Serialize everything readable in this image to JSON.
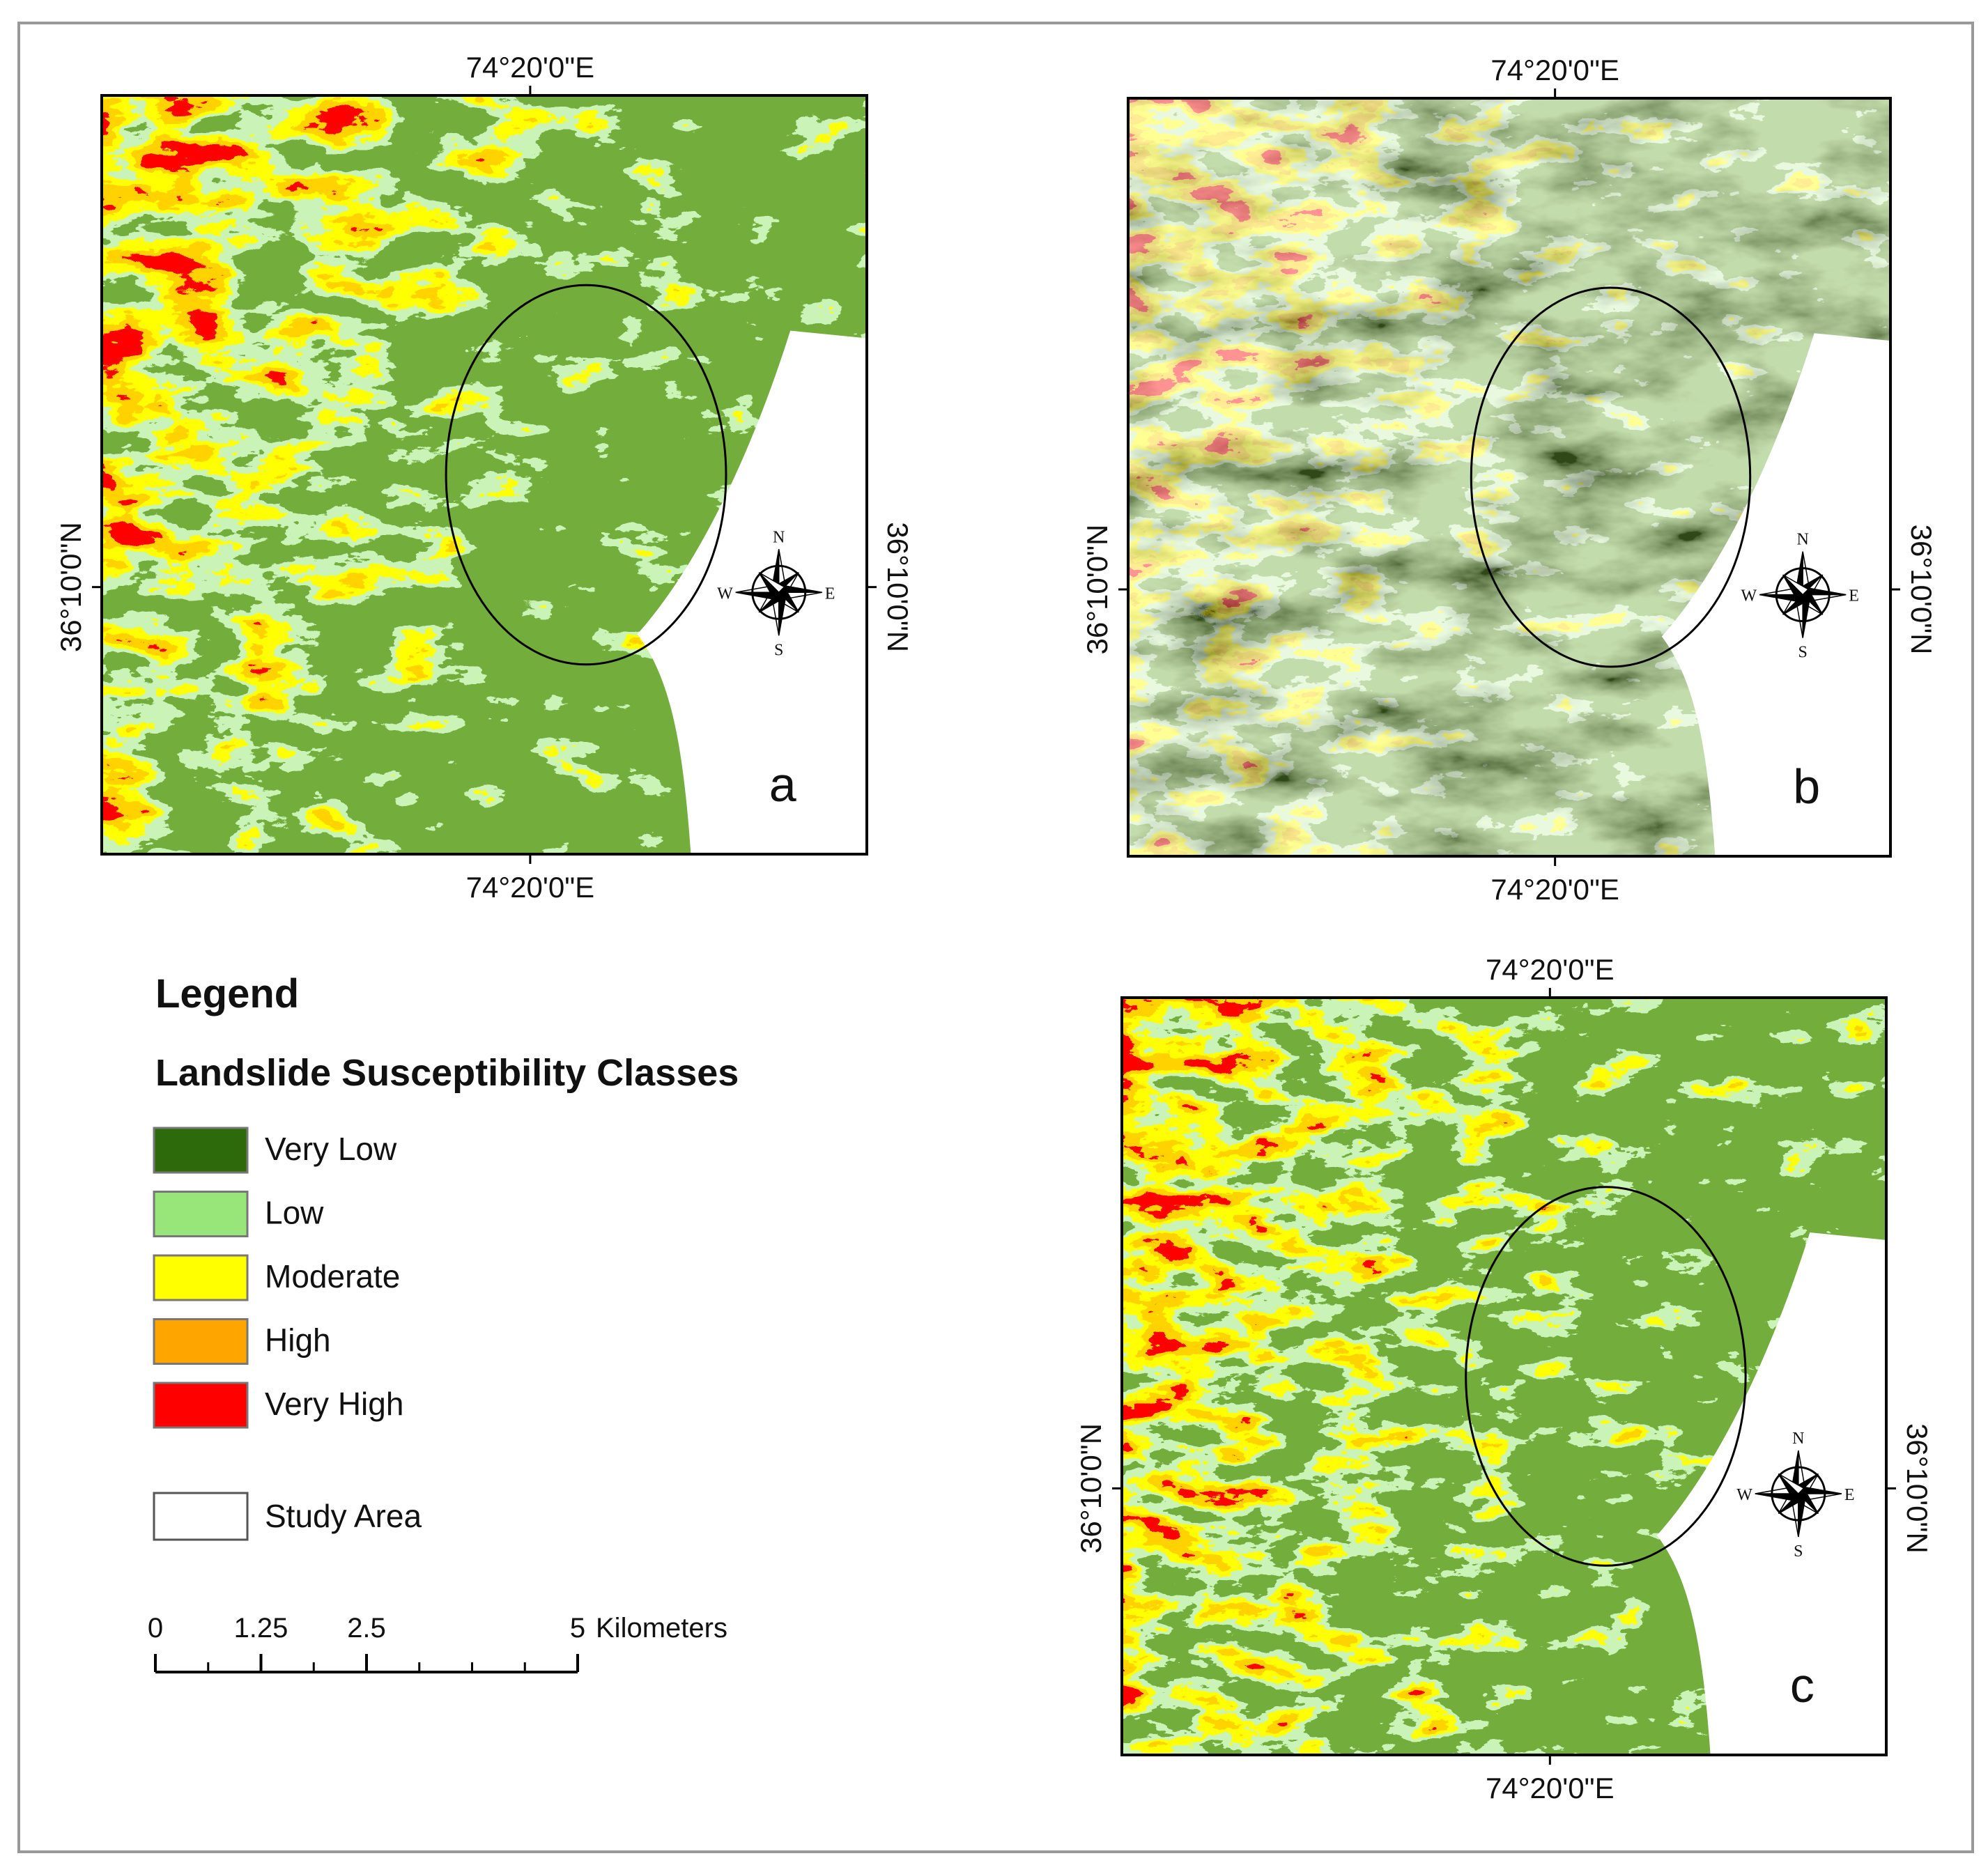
{
  "panels": [
    {
      "label": "a",
      "top_label": "74°20'0\"E",
      "bottom_label": "74°20'0\"E",
      "left_label": "36°10'0\"N",
      "right_label": "36°10'0\"N"
    },
    {
      "label": "b",
      "top_label": "74°20'0\"E",
      "bottom_label": "74°20'0\"E",
      "left_label": "36°10'0\"N",
      "right_label": "36°10'0\"N"
    },
    {
      "label": "c",
      "top_label": "74°20'0\"E",
      "bottom_label": "74°20'0\"E",
      "left_label": "36°10'0\"N",
      "right_label": "36°10'0\"N"
    }
  ],
  "compass": {
    "north": "N",
    "east": "E",
    "south": "S",
    "west": "W"
  },
  "legend": {
    "title": "Legend",
    "subtitle": "Landslide Susceptibility Classes",
    "classes": [
      {
        "label": "Very Low",
        "color": "#2c6a0c"
      },
      {
        "label": "Low",
        "color": "#98e57a"
      },
      {
        "label": "Moderate",
        "color": "#ffff00"
      },
      {
        "label": "High",
        "color": "#ffa500"
      },
      {
        "label": "Very High",
        "color": "#ff0000"
      }
    ],
    "study_area": "Study Area"
  },
  "scale_bar": {
    "ticks": [
      0,
      1.25,
      2.5,
      5
    ],
    "unit": "Kilometers"
  }
}
